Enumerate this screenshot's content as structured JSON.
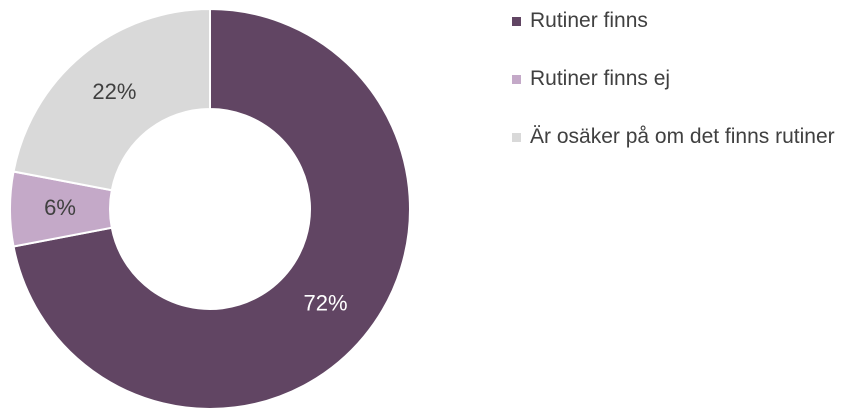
{
  "chart_data": {
    "type": "pie",
    "categories": [
      "Rutiner finns",
      "Rutiner finns ej",
      "Är osäker på om det finns rutiner"
    ],
    "values": [
      72,
      6,
      22
    ],
    "value_labels": [
      "72%",
      "6%",
      "22%"
    ],
    "colors": [
      "#614563",
      "#c4a9c8",
      "#d9d9d9"
    ],
    "label_colors": [
      "#ffffff",
      "#404040",
      "#404040"
    ],
    "hole": true,
    "legend": "right"
  }
}
